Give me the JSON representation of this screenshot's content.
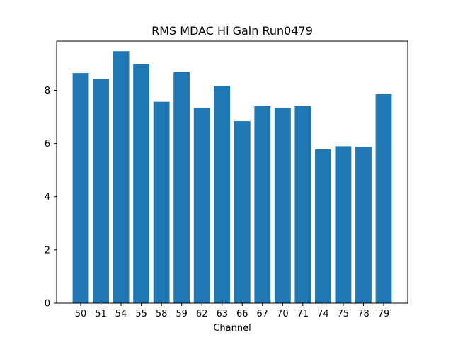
{
  "chart_data": {
    "type": "bar",
    "title": "RMS MDAC Hi Gain Run0479",
    "xlabel": "Channel",
    "ylabel": "",
    "categories": [
      "50",
      "51",
      "54",
      "55",
      "58",
      "59",
      "62",
      "63",
      "66",
      "67",
      "70",
      "71",
      "74",
      "75",
      "78",
      "79"
    ],
    "values": [
      8.65,
      8.42,
      9.47,
      8.98,
      7.57,
      8.69,
      7.35,
      8.16,
      6.84,
      7.41,
      7.35,
      7.4,
      5.78,
      5.9,
      5.87,
      7.86
    ],
    "ylim": [
      0,
      9.85
    ],
    "yticks": [
      0,
      2,
      4,
      6,
      8
    ],
    "grid": false,
    "bar_color": "#1f77b4"
  }
}
